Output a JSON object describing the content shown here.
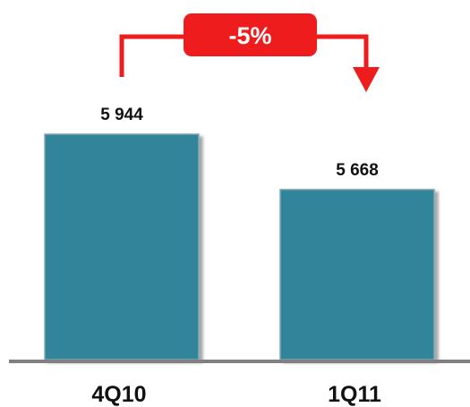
{
  "chart_data": {
    "type": "bar",
    "categories": [
      "4Q10",
      "1Q11"
    ],
    "values": [
      5944,
      5668
    ],
    "value_labels": [
      "5 944",
      "5 668"
    ],
    "ylim": [
      4820,
      6000
    ],
    "change_annotation": "-5%",
    "grid": false,
    "legend": "none"
  },
  "colors": {
    "bar": "#33849a",
    "bar_edge": "#7ea9b6",
    "arrow": "#ee1c1c",
    "axis": "#808080"
  }
}
